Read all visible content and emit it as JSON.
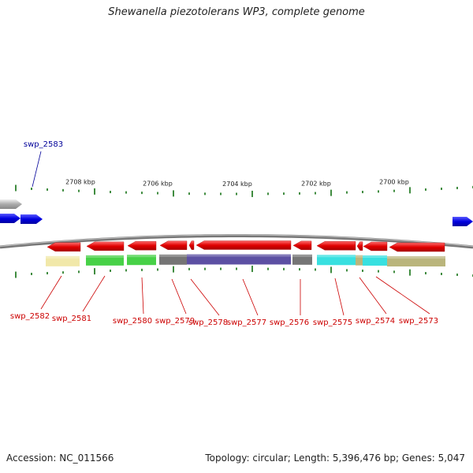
{
  "title": "Shewanella piezotolerans WP3, complete genome",
  "footer": {
    "accession": "Accession: NC_011566",
    "summary": "Topology: circular; Length: 5,396,476 bp; Genes: 5,047"
  },
  "colors": {
    "forward_gene": "#0000ee",
    "reverse_gene": "#ee0000",
    "backbone": "#888888",
    "tick": "#006600",
    "label_forward": "#000099",
    "label_reverse": "#cc0000"
  },
  "ruler": {
    "tick_labels": [
      "2708 kbp",
      "2706 kbp",
      "2704 kbp",
      "2702 kbp",
      "2700 kbp"
    ]
  },
  "genes": [
    {
      "id": "swp_2583",
      "strand": "forward",
      "label": "swp_2583"
    },
    {
      "id": "swp_2582",
      "strand": "reverse",
      "label": "swp_2582",
      "cog_color": "#f0e6a0"
    },
    {
      "id": "swp_2581",
      "strand": "reverse",
      "label": "swp_2581",
      "cog_color": "#33cc33"
    },
    {
      "id": "swp_2580",
      "strand": "reverse",
      "label": "swp_2580",
      "cog_color": "#33cc33"
    },
    {
      "id": "swp_2579",
      "strand": "reverse",
      "label": "swp_2579",
      "cog_color": "#666666"
    },
    {
      "id": "swp_2578",
      "strand": "reverse",
      "label": "swp_2578",
      "cog_color": "#666666"
    },
    {
      "id": "swp_2577",
      "strand": "reverse",
      "label": "swp_2577",
      "cog_color": "#4a3d99"
    },
    {
      "id": "swp_2576",
      "strand": "reverse",
      "label": "swp_2576",
      "cog_color": "#666666"
    },
    {
      "id": "swp_2575",
      "strand": "reverse",
      "label": "swp_2575",
      "cog_color": "#22dddd"
    },
    {
      "id": "swp_2574",
      "strand": "reverse",
      "label": "swp_2574",
      "cog_color": "#22dddd"
    },
    {
      "id": "swp_2573",
      "strand": "reverse",
      "label": "swp_2573",
      "cog_color": "#b3ad6e"
    }
  ]
}
